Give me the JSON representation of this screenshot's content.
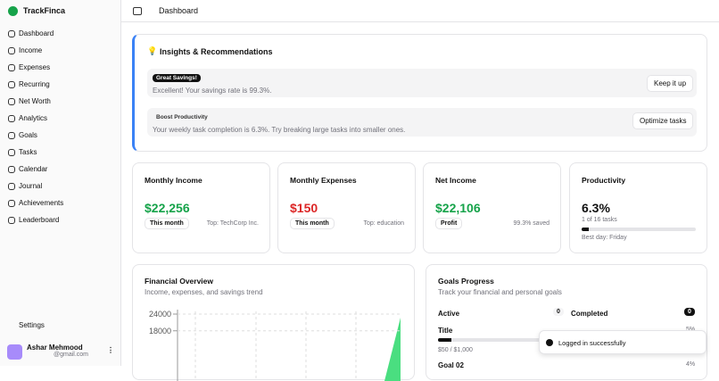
{
  "app": {
    "name": "TrackFinca"
  },
  "nav": [
    "Dashboard",
    "Income",
    "Expenses",
    "Recurring",
    "Net Worth",
    "Analytics",
    "Goals",
    "Tasks",
    "Calendar",
    "Journal",
    "Achievements",
    "Leaderboard"
  ],
  "footer": {
    "settings": "Settings",
    "user": "Ashar Mehmood",
    "email": "@gmail.com"
  },
  "header": {
    "title": "Dashboard"
  },
  "insights": {
    "title": "Insights & Recommendations",
    "items": [
      {
        "badge": "Great Savings!",
        "text": "Excellent! Your savings rate is 99.3%.",
        "button": "Keep it up"
      },
      {
        "badge": "Boost Productivity",
        "text": "Your weekly task completion is 6.3%. Try breaking large tasks into smaller ones.",
        "button": "Optimize tasks"
      }
    ]
  },
  "stats": [
    {
      "title": "Monthly Income",
      "value": "$22,256",
      "tag": "This month",
      "note": "Top: TechCorp Inc."
    },
    {
      "title": "Monthly Expenses",
      "value": "$150",
      "tag": "This month",
      "note": "Top: education"
    },
    {
      "title": "Net Income",
      "value": "$22,106",
      "tag": "Profit",
      "note": "99.3% saved"
    },
    {
      "title": "Productivity",
      "value": "6.3%",
      "progress": 6.3,
      "sub": "1 of 16 tasks",
      "note": "Best day: Friday"
    }
  ],
  "overview": {
    "title": "Financial Overview",
    "subtitle": "Income, expenses, and savings trend",
    "ylim": [
      0,
      24000
    ],
    "yticks": [
      24000,
      18000
    ]
  },
  "goals": {
    "title": "Goals Progress",
    "subtitle": "Track your financial and personal goals",
    "active_label": "Active",
    "active": "0",
    "completed_label": "Completed",
    "completed": "0",
    "items": [
      {
        "name": "Title",
        "amount": "$50 / $1,000",
        "progress": 5,
        "percent": "5%"
      },
      {
        "name": "Goal 02",
        "percent": "4%"
      }
    ]
  },
  "toast": "Logged in successfully"
}
